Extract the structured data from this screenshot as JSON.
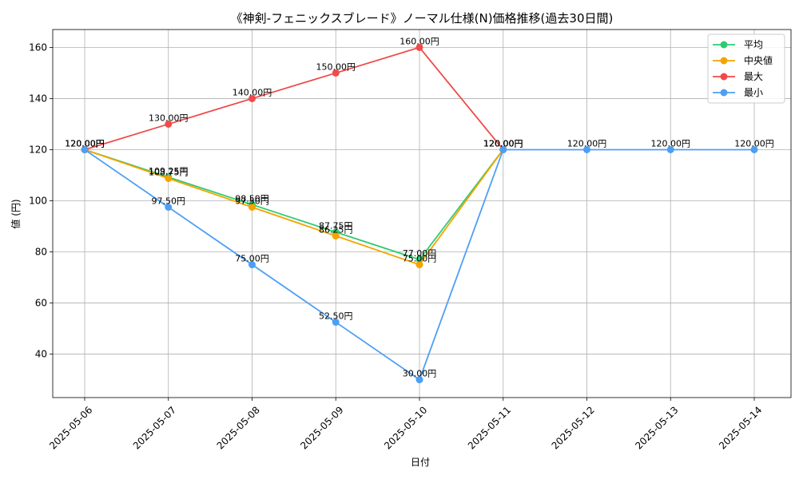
{
  "chart_data": {
    "type": "line",
    "title": "《神剣-フェニックスブレード》ノーマル仕様(N)価格推移(過去30日間)",
    "xlabel": "日付",
    "ylabel": "値 (円)",
    "categories": [
      "2025-05-06",
      "2025-05-07",
      "2025-05-08",
      "2025-05-09",
      "2025-05-10",
      "2025-05-11",
      "2025-05-12",
      "2025-05-13",
      "2025-05-14"
    ],
    "ylim": [
      23,
      167
    ],
    "yticks": [
      40,
      60,
      80,
      100,
      120,
      140,
      160
    ],
    "grid": true,
    "legend_position": "top-right",
    "series": [
      {
        "name": "平均",
        "color": "#2ecc71",
        "values": [
          120,
          109.25,
          98.5,
          87.75,
          77,
          120,
          null,
          null,
          null
        ],
        "labels": [
          "120.00円",
          "109.25円",
          "98.50円",
          "87.75円",
          "77.00円",
          "120.00円",
          "",
          "",
          ""
        ]
      },
      {
        "name": "中央値",
        "color": "#f5a300",
        "values": [
          120,
          108.75,
          97.5,
          86.25,
          75,
          120,
          null,
          null,
          null
        ],
        "labels": [
          "120.00円",
          "108.75円",
          "97.50円",
          "86.25円",
          "75.00円",
          "120.00円",
          "",
          "",
          ""
        ]
      },
      {
        "name": "最大",
        "color": "#f04a4a",
        "values": [
          120,
          130,
          140,
          150,
          160,
          120,
          null,
          null,
          null
        ],
        "labels": [
          "120.00円",
          "130.00円",
          "140.00円",
          "150.00円",
          "160.00円",
          "120.00円",
          "",
          "",
          ""
        ]
      },
      {
        "name": "最小",
        "color": "#4d9ff5",
        "values": [
          120,
          97.5,
          75,
          52.5,
          30,
          120,
          120,
          120,
          120
        ],
        "labels": [
          "120.00円",
          "97.50円",
          "75.00円",
          "52.50円",
          "30.00円",
          "120.00円",
          "120.00円",
          "120.00円",
          "120.00円"
        ]
      }
    ]
  }
}
